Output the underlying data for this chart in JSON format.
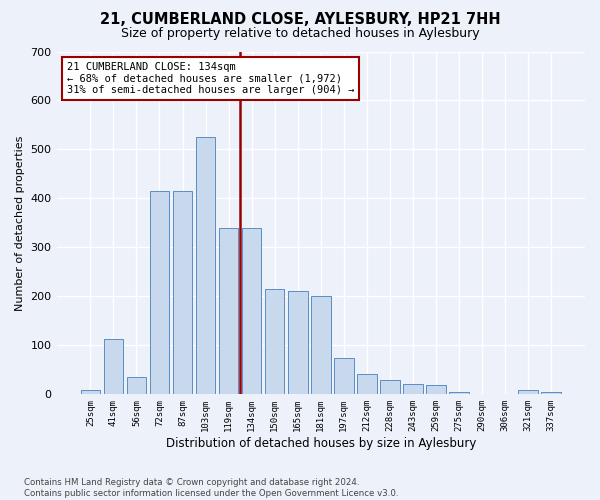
{
  "title": "21, CUMBERLAND CLOSE, AYLESBURY, HP21 7HH",
  "subtitle": "Size of property relative to detached houses in Aylesbury",
  "xlabel": "Distribution of detached houses by size in Aylesbury",
  "ylabel": "Number of detached properties",
  "categories": [
    "25sqm",
    "41sqm",
    "56sqm",
    "72sqm",
    "87sqm",
    "103sqm",
    "119sqm",
    "134sqm",
    "150sqm",
    "165sqm",
    "181sqm",
    "197sqm",
    "212sqm",
    "228sqm",
    "243sqm",
    "259sqm",
    "275sqm",
    "290sqm",
    "306sqm",
    "321sqm",
    "337sqm"
  ],
  "values": [
    8,
    112,
    35,
    415,
    415,
    525,
    340,
    340,
    215,
    210,
    200,
    75,
    42,
    30,
    22,
    20,
    5,
    0,
    0,
    8,
    5
  ],
  "bar_color": "#c8d9ee",
  "bar_edge_color": "#5b8ec4",
  "vline_index": 7,
  "vline_color": "#990000",
  "annotation_text": "21 CUMBERLAND CLOSE: 134sqm\n← 68% of detached houses are smaller (1,972)\n31% of semi-detached houses are larger (904) →",
  "annotation_box_facecolor": "#ffffff",
  "annotation_box_edgecolor": "#990000",
  "bg_color": "#edf1f9",
  "footer": "Contains HM Land Registry data © Crown copyright and database right 2024.\nContains public sector information licensed under the Open Government Licence v3.0.",
  "ylim": [
    0,
    700
  ],
  "yticks": [
    0,
    100,
    200,
    300,
    400,
    500,
    600,
    700
  ]
}
